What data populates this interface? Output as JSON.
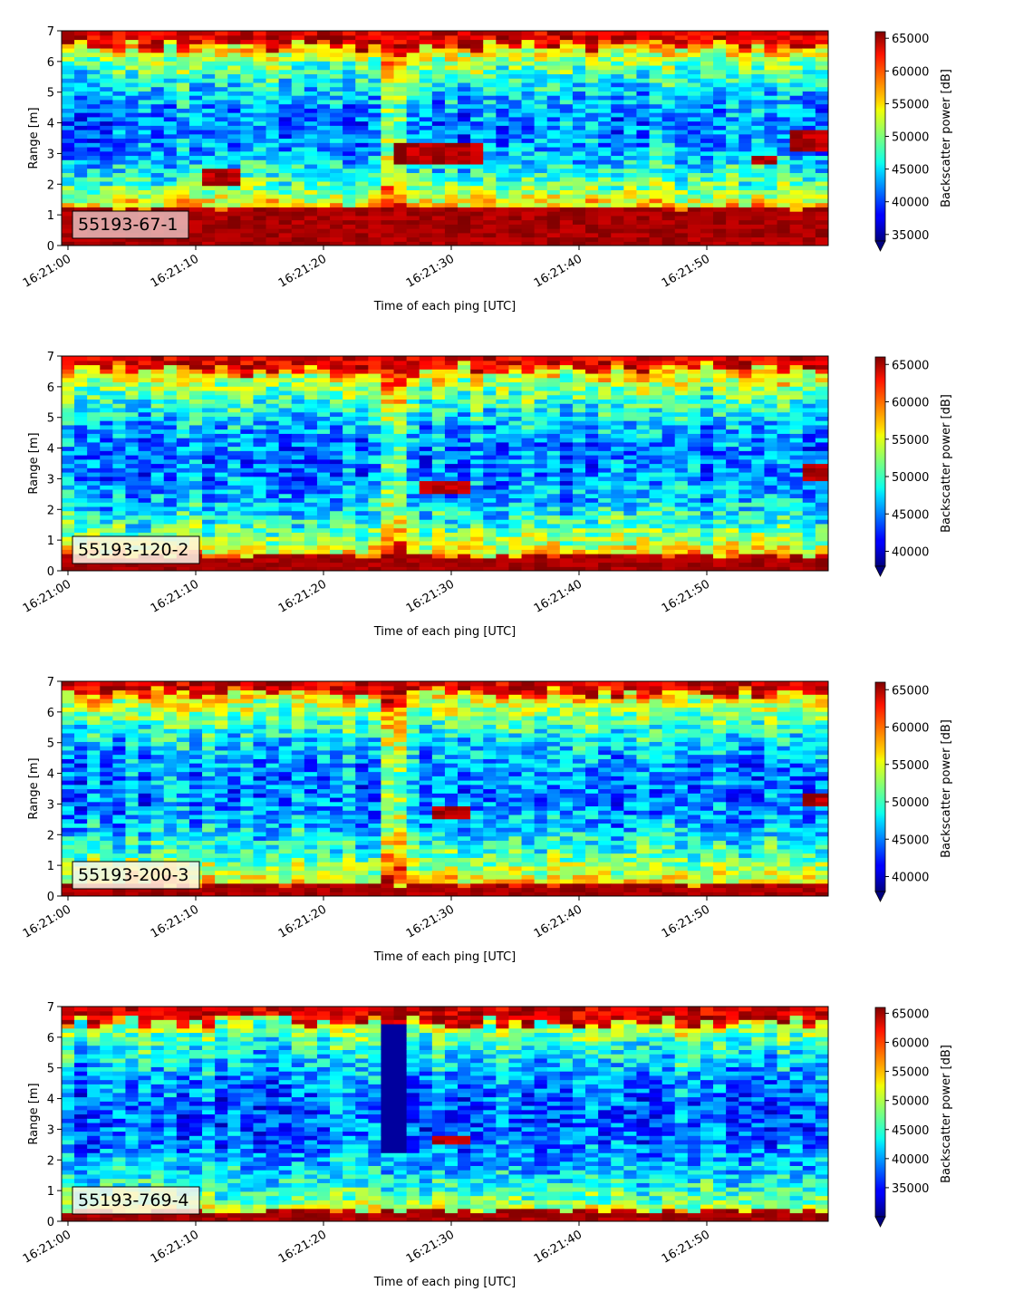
{
  "chart_data": [
    {
      "type": "heatmap",
      "label": "55193-67-1",
      "xlabel": "Time of each ping [UTC]",
      "ylabel": "Range [m]",
      "cbar_label": "Backscatter power [dB]",
      "xticks": [
        "16:21:00",
        "16:21:10",
        "16:21:20",
        "16:21:30",
        "16:21:40",
        "16:21:50"
      ],
      "xlim_seconds": [
        -0.5,
        59.5
      ],
      "ylim": [
        0,
        7
      ],
      "yticks": [
        0,
        1,
        2,
        3,
        4,
        5,
        6,
        7
      ],
      "clim": [
        34000,
        66000
      ],
      "cticks": [
        35000,
        40000,
        45000,
        50000,
        55000,
        60000,
        65000
      ],
      "colormap": "jet",
      "features": {
        "bottom_band_top_m": 1.25,
        "surface_band_bottom_m": 6.5,
        "targets": [
          {
            "t0": 11.5,
            "t1": 13.5,
            "r0": 2.0,
            "r1": 2.5
          },
          {
            "t0": 26.5,
            "t1": 32.5,
            "r0": 2.7,
            "r1": 3.4
          },
          {
            "t0": 54.5,
            "t1": 55.5,
            "r0": 2.6,
            "r1": 3.0
          },
          {
            "t0": 57.5,
            "t1": 59.5,
            "r0": 3.1,
            "r1": 3.8
          }
        ],
        "bright_ping_t": 25.5
      }
    },
    {
      "type": "heatmap",
      "label": "55193-120-2",
      "xlabel": "Time of each ping [UTC]",
      "ylabel": "Range [m]",
      "cbar_label": "Backscatter power [dB]",
      "xticks": [
        "16:21:00",
        "16:21:10",
        "16:21:20",
        "16:21:30",
        "16:21:40",
        "16:21:50"
      ],
      "xlim_seconds": [
        -0.5,
        59.5
      ],
      "ylim": [
        0,
        7
      ],
      "yticks": [
        0,
        1,
        2,
        3,
        4,
        5,
        6,
        7
      ],
      "clim": [
        38000,
        66000
      ],
      "cticks": [
        40000,
        45000,
        50000,
        55000,
        60000,
        65000
      ],
      "colormap": "jet",
      "features": {
        "bottom_band_top_m": 0.5,
        "surface_band_bottom_m": 6.6,
        "targets": [
          {
            "t0": 28.5,
            "t1": 31.5,
            "r0": 2.5,
            "r1": 3.0
          },
          {
            "t0": 58.5,
            "t1": 59.5,
            "r0": 3.0,
            "r1": 3.5
          }
        ],
        "bright_ping_t": 25.5
      }
    },
    {
      "type": "heatmap",
      "label": "55193-200-3",
      "xlabel": "Time of each ping [UTC]",
      "ylabel": "Range [m]",
      "cbar_label": "Backscatter power [dB]",
      "xticks": [
        "16:21:00",
        "16:21:10",
        "16:21:20",
        "16:21:30",
        "16:21:40",
        "16:21:50"
      ],
      "xlim_seconds": [
        -0.5,
        59.5
      ],
      "ylim": [
        0,
        7
      ],
      "yticks": [
        0,
        1,
        2,
        3,
        4,
        5,
        6,
        7
      ],
      "clim": [
        38000,
        66000
      ],
      "cticks": [
        40000,
        45000,
        50000,
        55000,
        60000,
        65000
      ],
      "colormap": "jet",
      "features": {
        "bottom_band_top_m": 0.4,
        "surface_band_bottom_m": 6.6,
        "targets": [
          {
            "t0": 29.5,
            "t1": 31.5,
            "r0": 2.5,
            "r1": 3.0
          },
          {
            "t0": 58.5,
            "t1": 59.5,
            "r0": 3.0,
            "r1": 3.4
          }
        ],
        "bright_ping_t": 25.5
      }
    },
    {
      "type": "heatmap",
      "label": "55193-769-4",
      "xlabel": "Time of each ping [UTC]",
      "ylabel": "Range [m]",
      "cbar_label": "Backscatter power [dB]",
      "xticks": [
        "16:21:00",
        "16:21:10",
        "16:21:20",
        "16:21:30",
        "16:21:40",
        "16:21:50"
      ],
      "xlim_seconds": [
        -0.5,
        59.5
      ],
      "ylim": [
        0,
        7
      ],
      "yticks": [
        0,
        1,
        2,
        3,
        4,
        5,
        6,
        7
      ],
      "clim": [
        30000,
        66000
      ],
      "cticks": [
        35000,
        40000,
        45000,
        50000,
        55000,
        60000,
        65000
      ],
      "colormap": "jet",
      "features": {
        "bottom_band_top_m": 0.35,
        "surface_band_bottom_m": 6.5,
        "targets": [
          {
            "t0": 29.5,
            "t1": 31.5,
            "r0": 2.5,
            "r1": 2.8
          }
        ],
        "dark_ping_t": 25.5
      }
    }
  ]
}
